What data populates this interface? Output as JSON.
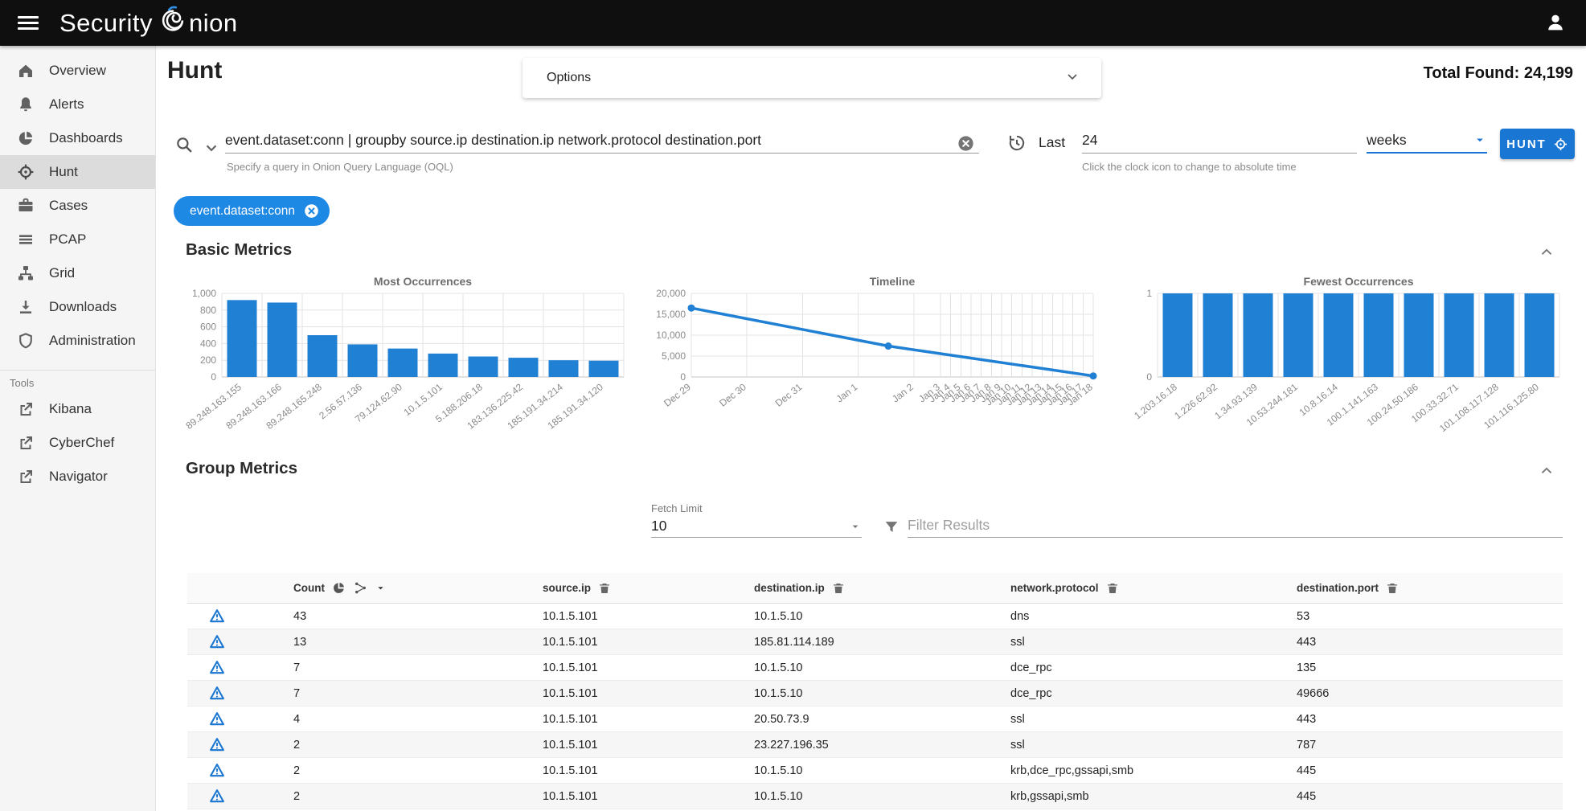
{
  "topbar": {
    "brand_prefix": "Security",
    "brand_suffix": "nion"
  },
  "sidebar": {
    "items": [
      {
        "label": "Overview",
        "icon": "home"
      },
      {
        "label": "Alerts",
        "icon": "bell"
      },
      {
        "label": "Dashboards",
        "icon": "pie"
      },
      {
        "label": "Hunt",
        "icon": "crosshair",
        "active": true
      },
      {
        "label": "Cases",
        "icon": "briefcase"
      },
      {
        "label": "PCAP",
        "icon": "lines"
      },
      {
        "label": "Grid",
        "icon": "sitemap"
      },
      {
        "label": "Downloads",
        "icon": "download"
      },
      {
        "label": "Administration",
        "icon": "shield"
      }
    ],
    "tools_label": "Tools",
    "tools": [
      {
        "label": "Kibana",
        "icon": "external"
      },
      {
        "label": "CyberChef",
        "icon": "external"
      },
      {
        "label": "Navigator",
        "icon": "external"
      }
    ]
  },
  "header": {
    "title": "Hunt",
    "options_label": "Options",
    "total_found_label": "Total Found:",
    "total_found_value": "24,199"
  },
  "search": {
    "query": "event.dataset:conn | groupby source.ip destination.ip network.protocol destination.port",
    "query_hint": "Specify a query in Onion Query Language (OQL)",
    "time_label": "Last",
    "time_value": "24",
    "time_unit": "weeks",
    "time_hint": "Click the clock icon to change to absolute time",
    "hunt_button": "HUNT"
  },
  "filter_chip": "event.dataset:conn",
  "sections": {
    "basic": "Basic Metrics",
    "group": "Group Metrics"
  },
  "group_controls": {
    "fetch_limit_label": "Fetch Limit",
    "fetch_limit_value": "10",
    "filter_placeholder": "Filter Results"
  },
  "table": {
    "columns": [
      "Count",
      "source.ip",
      "destination.ip",
      "network.protocol",
      "destination.port"
    ],
    "rows": [
      [
        "43",
        "10.1.5.101",
        "10.1.5.10",
        "dns",
        "53"
      ],
      [
        "13",
        "10.1.5.101",
        "185.81.114.189",
        "ssl",
        "443"
      ],
      [
        "7",
        "10.1.5.101",
        "10.1.5.10",
        "dce_rpc",
        "135"
      ],
      [
        "7",
        "10.1.5.101",
        "10.1.5.10",
        "dce_rpc",
        "49666"
      ],
      [
        "4",
        "10.1.5.101",
        "20.50.73.9",
        "ssl",
        "443"
      ],
      [
        "2",
        "10.1.5.101",
        "23.227.196.35",
        "ssl",
        "787"
      ],
      [
        "2",
        "10.1.5.101",
        "10.1.5.10",
        "krb,dce_rpc,gssapi,smb",
        "445"
      ],
      [
        "2",
        "10.1.5.101",
        "10.1.5.10",
        "krb,gssapi,smb",
        "445"
      ]
    ]
  },
  "chart_data": [
    {
      "type": "bar",
      "name": "most-occurrences",
      "title": "Most Occurrences",
      "categories": [
        "89.248.163.155",
        "89.248.163.166",
        "89.248.165.248",
        "2.56.57.136",
        "79.124.62.90",
        "10.1.5.101",
        "5.188.206.18",
        "183.136.225.42",
        "185.191.34.214",
        "185.191.34.120"
      ],
      "values": [
        920,
        890,
        500,
        390,
        340,
        280,
        245,
        230,
        200,
        195
      ],
      "ylim": [
        0,
        1000
      ],
      "yticks": [
        {
          "v": 0,
          "label": "0"
        },
        {
          "v": 200,
          "label": "200"
        },
        {
          "v": 400,
          "label": "400"
        },
        {
          "v": 600,
          "label": "600"
        },
        {
          "v": 800,
          "label": "800"
        },
        {
          "v": 1000,
          "label": "1,000"
        }
      ],
      "grid": true,
      "xtick_rotation": -38,
      "bar_color": "#2080d4"
    },
    {
      "type": "line",
      "name": "timeline",
      "title": "Timeline",
      "ylim": [
        0,
        20000
      ],
      "yticks": [
        {
          "v": 0,
          "label": "0"
        },
        {
          "v": 5000,
          "label": "5,000"
        },
        {
          "v": 10000,
          "label": "10,000"
        },
        {
          "v": 15000,
          "label": "15,000"
        },
        {
          "v": 20000,
          "label": "20,000"
        }
      ],
      "x_ticks": [
        {
          "label": "Dec 29",
          "pos": 0.0
        },
        {
          "label": "Dec 30",
          "pos": 0.138
        },
        {
          "label": "Dec 31",
          "pos": 0.277
        },
        {
          "label": "Jan 1",
          "pos": 0.415
        },
        {
          "label": "Jan 2",
          "pos": 0.554
        },
        {
          "label": "Jan 3",
          "pos": 0.62
        },
        {
          "label": "Jan 4",
          "pos": 0.645
        },
        {
          "label": "Jan 5",
          "pos": 0.671
        },
        {
          "label": "Jan 6",
          "pos": 0.696
        },
        {
          "label": "Jan 7",
          "pos": 0.721
        },
        {
          "label": "Jan 8",
          "pos": 0.747
        },
        {
          "label": "Jan 9",
          "pos": 0.772
        },
        {
          "label": "Jan 10",
          "pos": 0.797
        },
        {
          "label": "Jan 11",
          "pos": 0.823
        },
        {
          "label": "Jan 12",
          "pos": 0.848
        },
        {
          "label": "Jan 13",
          "pos": 0.873
        },
        {
          "label": "Jan 14",
          "pos": 0.899
        },
        {
          "label": "Jan 15",
          "pos": 0.924
        },
        {
          "label": "Jan 16",
          "pos": 0.949
        },
        {
          "label": "Jan 17",
          "pos": 0.975
        },
        {
          "label": "Jan 18",
          "pos": 1.0
        }
      ],
      "points": [
        {
          "x": "Dec 29",
          "pos": 0.0,
          "value": 16500
        },
        {
          "x": "Jan 2",
          "pos": 0.49,
          "value": 7400
        },
        {
          "x": "Jan 18",
          "pos": 1.0,
          "value": 250
        }
      ],
      "grid": true,
      "xtick_rotation": -38,
      "line_color": "#2080d4"
    },
    {
      "type": "bar",
      "name": "fewest-occurrences",
      "title": "Fewest Occurrences",
      "categories": [
        "1.203.16.18",
        "1.226.62.92",
        "1.34.93.139",
        "10.53.244.181",
        "10.8.16.14",
        "100.1.141.163",
        "100.24.50.186",
        "100.33.32.71",
        "101.108.117.128",
        "101.116.125.80"
      ],
      "values": [
        1,
        1,
        1,
        1,
        1,
        1,
        1,
        1,
        1,
        1
      ],
      "ylim": [
        0,
        1
      ],
      "yticks": [
        {
          "v": 0,
          "label": "0"
        },
        {
          "v": 1,
          "label": "1"
        }
      ],
      "grid": true,
      "xtick_rotation": -38,
      "bar_color": "#2080d4"
    }
  ],
  "colors": {
    "accent": "#1976d2",
    "chip": "#1e88e5",
    "bar": "#2080d4",
    "topbar": "#0f0f0f"
  }
}
